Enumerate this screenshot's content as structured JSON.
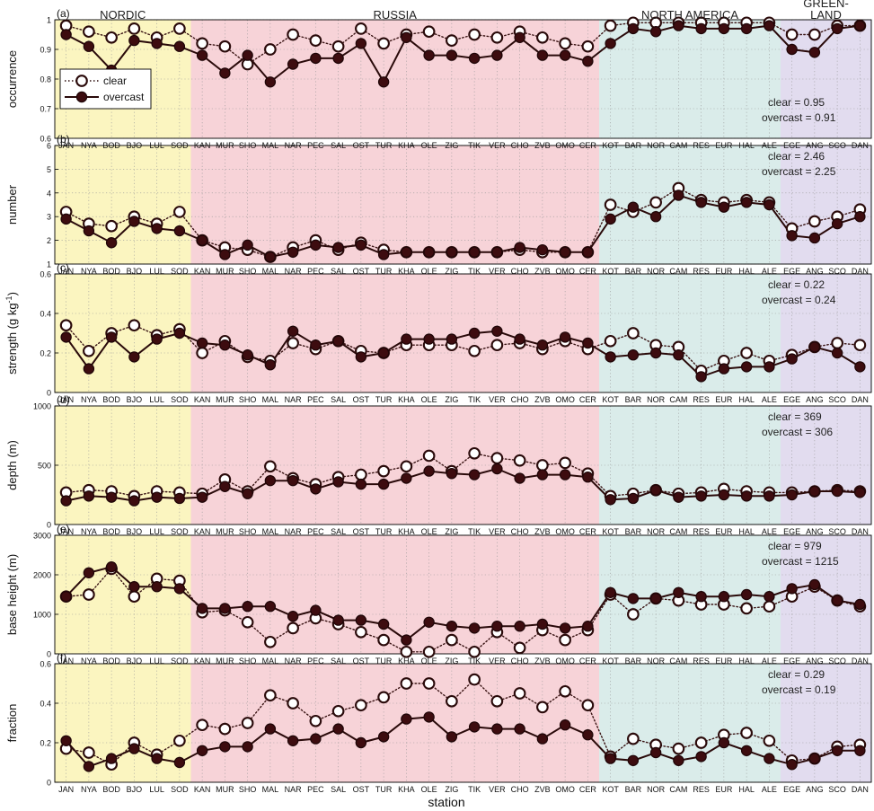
{
  "chart_data": {
    "type": "line",
    "xlabel": "station",
    "categories": [
      "JAN",
      "NYA",
      "BOD",
      "BJO",
      "LUL",
      "SOD",
      "KAN",
      "MUR",
      "SHO",
      "MAL",
      "NAR",
      "PEC",
      "SAL",
      "OST",
      "TUR",
      "KHA",
      "OLE",
      "ZIG",
      "TIK",
      "VER",
      "CHO",
      "ZVB",
      "OMO",
      "CER",
      "KOT",
      "BAR",
      "NOR",
      "CAM",
      "RES",
      "EUR",
      "HAL",
      "ALE",
      "EGE",
      "ANG",
      "SCO",
      "DAN"
    ],
    "regions": [
      {
        "name": "NORDIC",
        "start": 0,
        "end": 5,
        "color": "#fbf5c0"
      },
      {
        "name": "RUSSIA",
        "start": 6,
        "end": 23,
        "color": "#f7d3d8"
      },
      {
        "name": "NORTH AMERICA",
        "start": 24,
        "end": 31,
        "color": "#daecea"
      },
      {
        "name": "GREEN-LAND",
        "start": 32,
        "end": 35,
        "color": "#e2dcef"
      }
    ],
    "legend": {
      "clear": "clear",
      "overcast": "overcast"
    },
    "panels": [
      {
        "label": "(a)",
        "ylabel": "occurrence",
        "ylim": [
          0.6,
          1.0
        ],
        "yticks": [
          "0.6",
          "0.7",
          "0.8",
          "0.9",
          "1"
        ],
        "yvals": [
          0.6,
          0.7,
          0.8,
          0.9,
          1.0
        ],
        "annotation": [
          "clear = 0.95",
          "overcast = 0.91"
        ],
        "series": [
          {
            "name": "clear",
            "values": [
              0.98,
              0.96,
              0.94,
              0.97,
              0.94,
              0.97,
              0.92,
              0.91,
              0.85,
              0.9,
              0.95,
              0.93,
              0.91,
              0.97,
              0.92,
              0.95,
              0.96,
              0.93,
              0.95,
              0.94,
              0.96,
              0.94,
              0.92,
              0.91,
              0.98,
              0.99,
              0.99,
              0.99,
              0.99,
              0.99,
              0.99,
              0.99,
              0.95,
              0.95,
              0.98,
              0.98
            ]
          },
          {
            "name": "overcast",
            "values": [
              0.95,
              0.91,
              0.83,
              0.93,
              0.92,
              0.91,
              0.88,
              0.82,
              0.88,
              0.79,
              0.85,
              0.87,
              0.87,
              0.92,
              0.79,
              0.94,
              0.88,
              0.88,
              0.87,
              0.88,
              0.94,
              0.88,
              0.88,
              0.86,
              0.92,
              0.97,
              0.96,
              0.98,
              0.97,
              0.97,
              0.97,
              0.98,
              0.9,
              0.89,
              0.97,
              0.98
            ]
          }
        ]
      },
      {
        "label": "(b)",
        "ylabel": "number",
        "ylim": [
          1,
          6
        ],
        "yticks": [
          "1",
          "2",
          "3",
          "4",
          "5",
          "6"
        ],
        "yvals": [
          1,
          2,
          3,
          4,
          5,
          6
        ],
        "annotation": [
          "clear = 2.46",
          "overcast = 2.25"
        ],
        "series": [
          {
            "name": "clear",
            "values": [
              3.2,
              2.7,
              2.6,
              3.0,
              2.7,
              3.2,
              2.0,
              1.7,
              1.6,
              1.3,
              1.7,
              2.0,
              1.6,
              1.9,
              1.6,
              1.5,
              1.5,
              1.5,
              1.5,
              1.5,
              1.6,
              1.5,
              1.5,
              1.5,
              3.5,
              3.2,
              3.6,
              4.2,
              3.7,
              3.6,
              3.7,
              3.6,
              2.5,
              2.8,
              3.0,
              3.3
            ]
          },
          {
            "name": "overcast",
            "values": [
              2.9,
              2.4,
              1.9,
              2.8,
              2.5,
              2.4,
              2.0,
              1.4,
              1.8,
              1.3,
              1.5,
              1.8,
              1.7,
              1.8,
              1.4,
              1.5,
              1.5,
              1.5,
              1.5,
              1.5,
              1.7,
              1.6,
              1.5,
              1.5,
              2.9,
              3.4,
              3.0,
              3.9,
              3.6,
              3.4,
              3.6,
              3.5,
              2.2,
              2.1,
              2.7,
              3.0
            ]
          }
        ]
      },
      {
        "label": "(c)",
        "ylabel": "strength (g kg⁻¹)",
        "ylim": [
          0,
          0.6
        ],
        "yticks": [
          "0",
          "0.2",
          "0.4",
          "0.6"
        ],
        "yvals": [
          0,
          0.2,
          0.4,
          0.6
        ],
        "annotation": [
          "clear = 0.22",
          "overcast = 0.24"
        ],
        "series": [
          {
            "name": "clear",
            "values": [
              0.34,
              0.21,
              0.3,
              0.34,
              0.29,
              0.32,
              0.2,
              0.26,
              0.18,
              0.16,
              0.25,
              0.22,
              0.26,
              0.21,
              0.2,
              0.24,
              0.24,
              0.24,
              0.21,
              0.24,
              0.25,
              0.22,
              0.26,
              0.22,
              0.26,
              0.3,
              0.24,
              0.23,
              0.11,
              0.16,
              0.2,
              0.16,
              0.19,
              0.23,
              0.25,
              0.24
            ]
          },
          {
            "name": "overcast",
            "values": [
              0.28,
              0.12,
              0.28,
              0.18,
              0.27,
              0.3,
              0.25,
              0.24,
              0.19,
              0.14,
              0.31,
              0.24,
              0.26,
              0.18,
              0.2,
              0.27,
              0.27,
              0.27,
              0.3,
              0.31,
              0.27,
              0.24,
              0.28,
              0.25,
              0.18,
              0.19,
              0.2,
              0.19,
              0.08,
              0.12,
              0.13,
              0.13,
              0.17,
              0.23,
              0.2,
              0.13
            ]
          }
        ]
      },
      {
        "label": "(d)",
        "ylabel": "depth (m)",
        "ylim": [
          0,
          1000
        ],
        "yticks": [
          "0",
          "500",
          "1000"
        ],
        "yvals": [
          0,
          500,
          1000
        ],
        "annotation": [
          "clear = 369",
          "overcast = 306"
        ],
        "series": [
          {
            "name": "clear",
            "values": [
              270,
              290,
              280,
              240,
              280,
              270,
              260,
              380,
              280,
              490,
              390,
              340,
              400,
              420,
              450,
              490,
              580,
              450,
              600,
              560,
              540,
              500,
              520,
              430,
              240,
              260,
              290,
              260,
              270,
              300,
              280,
              270,
              270,
              280,
              290,
              280
            ]
          },
          {
            "name": "overcast",
            "values": [
              200,
              240,
              230,
              200,
              230,
              220,
              230,
              320,
              260,
              370,
              370,
              300,
              360,
              340,
              340,
              390,
              450,
              430,
              420,
              470,
              390,
              420,
              420,
              400,
              210,
              220,
              290,
              230,
              240,
              250,
              240,
              240,
              250,
              280,
              280,
              270
            ]
          }
        ]
      },
      {
        "label": "(e)",
        "ylabel": "base height (m)",
        "ylim": [
          0,
          3000
        ],
        "yticks": [
          "0",
          "1000",
          "2000",
          "3000"
        ],
        "yvals": [
          0,
          1000,
          2000,
          3000
        ],
        "annotation": [
          "clear = 979",
          "overcast = 1215"
        ],
        "series": [
          {
            "name": "clear",
            "values": [
              1450,
              1500,
              2150,
              1450,
              1900,
              1850,
              1050,
              1100,
              800,
              300,
              650,
              900,
              750,
              550,
              350,
              50,
              50,
              350,
              50,
              550,
              150,
              600,
              350,
              600,
              1500,
              1000,
              1400,
              1350,
              1250,
              1250,
              1150,
              1200,
              1450,
              1700,
              1350,
              1200
            ]
          },
          {
            "name": "overcast",
            "values": [
              1450,
              2050,
              2200,
              1700,
              1700,
              1650,
              1150,
              1150,
              1200,
              1200,
              950,
              1100,
              850,
              850,
              750,
              350,
              800,
              700,
              650,
              700,
              700,
              750,
              650,
              700,
              1550,
              1400,
              1400,
              1550,
              1450,
              1450,
              1500,
              1450,
              1650,
              1750,
              1350,
              1250
            ]
          }
        ]
      },
      {
        "label": "(f)",
        "ylabel": "fraction",
        "ylim": [
          0,
          0.6
        ],
        "yticks": [
          "0",
          "0.2",
          "0.4",
          "0.6"
        ],
        "yvals": [
          0,
          0.2,
          0.4,
          0.6
        ],
        "annotation": [
          "clear = 0.29",
          "overcast = 0.19"
        ],
        "series": [
          {
            "name": "clear",
            "values": [
              0.17,
              0.15,
              0.09,
              0.2,
              0.14,
              0.21,
              0.29,
              0.27,
              0.3,
              0.44,
              0.4,
              0.31,
              0.36,
              0.39,
              0.43,
              0.5,
              0.5,
              0.41,
              0.52,
              0.41,
              0.45,
              0.38,
              0.46,
              0.39,
              0.13,
              0.22,
              0.19,
              0.17,
              0.2,
              0.24,
              0.25,
              0.21,
              0.11,
              0.12,
              0.18,
              0.19
            ]
          },
          {
            "name": "overcast",
            "values": [
              0.21,
              0.08,
              0.12,
              0.17,
              0.12,
              0.1,
              0.16,
              0.18,
              0.18,
              0.27,
              0.21,
              0.22,
              0.27,
              0.2,
              0.23,
              0.32,
              0.33,
              0.23,
              0.28,
              0.27,
              0.27,
              0.22,
              0.29,
              0.24,
              0.12,
              0.11,
              0.15,
              0.11,
              0.13,
              0.2,
              0.16,
              0.12,
              0.09,
              0.12,
              0.16,
              0.16
            ]
          }
        ]
      }
    ]
  }
}
